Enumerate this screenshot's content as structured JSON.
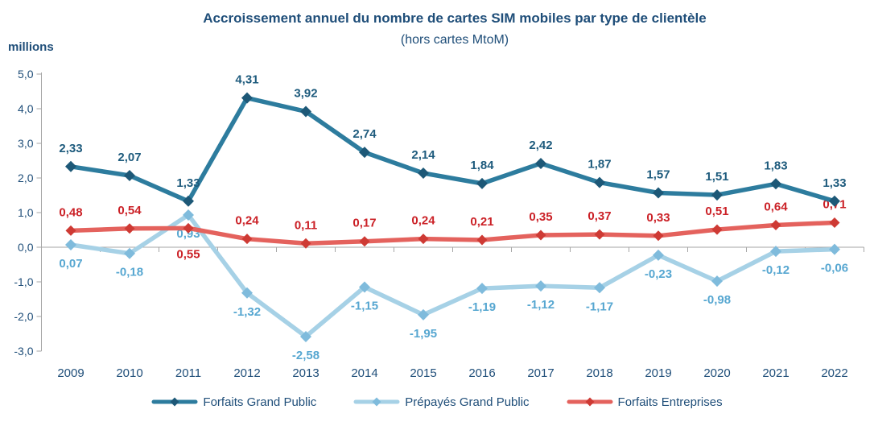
{
  "chart_data": {
    "type": "line",
    "title": "Accroissement annuel du nombre de cartes SIM mobiles par type de clientèle",
    "subtitle": "(hors cartes MtoM)",
    "unit_label": "millions",
    "categories": [
      "2009",
      "2010",
      "2011",
      "2012",
      "2013",
      "2014",
      "2015",
      "2016",
      "2017",
      "2018",
      "2019",
      "2020",
      "2021",
      "2022"
    ],
    "y_axis": {
      "min": -3.0,
      "max": 5.0,
      "tick_step": 1.0,
      "tick_labels": [
        "5,0",
        "4,0",
        "3,0",
        "2,0",
        "1,0",
        "0,0",
        "-1,0",
        "-2,0",
        "-3,0"
      ]
    },
    "grid": "off",
    "legend_position": "bottom",
    "colors": {
      "text": "#1F4E79",
      "axis": "#A6A6A6"
    },
    "series": [
      {
        "name": "Forfaits Grand Public",
        "color": "#2D7C9E",
        "marker_color": "#1D5877",
        "label_color": "#1E5B7D",
        "values": [
          2.33,
          2.07,
          1.33,
          4.31,
          3.92,
          2.74,
          2.14,
          1.84,
          2.42,
          1.87,
          1.57,
          1.51,
          1.83,
          1.33
        ],
        "labels": [
          "2,33",
          "2,07",
          "1,33",
          "4,31",
          "3,92",
          "2,74",
          "2,14",
          "1,84",
          "2,42",
          "1,87",
          "1,57",
          "1,51",
          "1,83",
          "1,33"
        ],
        "label_placement": "above",
        "label_offset_overrides": {}
      },
      {
        "name": "Prépayés Grand Public",
        "color": "#A6D1E6",
        "marker_color": "#7FBBDC",
        "label_color": "#57A7D1",
        "values": [
          0.07,
          -0.18,
          0.93,
          -1.32,
          -2.58,
          -1.15,
          -1.95,
          -1.19,
          -1.12,
          -1.17,
          -0.23,
          -0.98,
          -0.12,
          -0.06
        ],
        "labels": [
          "0,07",
          "-0,18",
          "0,93",
          "-1,32",
          "-2,58",
          "-1,15",
          "-1,95",
          "-1,19",
          "-1,12",
          "-1,17",
          "-0,23",
          "-0,98",
          "-0,12",
          "-0,06"
        ],
        "label_placement": "below",
        "label_offset_overrides": {}
      },
      {
        "name": "Forfaits Entreprises",
        "color": "#E4625D",
        "marker_color": "#CE3A34",
        "label_color": "#CB2127",
        "values": [
          0.48,
          0.54,
          0.55,
          0.24,
          0.11,
          0.17,
          0.24,
          0.21,
          0.35,
          0.37,
          0.33,
          0.51,
          0.64,
          0.71
        ],
        "labels": [
          "0,48",
          "0,54",
          "0,55",
          "0,24",
          "0,11",
          "0,17",
          "0,24",
          "0,21",
          "0,35",
          "0,37",
          "0,33",
          "0,51",
          "0,64",
          "0,71"
        ],
        "label_placement": "above",
        "label_offset_overrides": {
          "2": 37
        }
      }
    ]
  }
}
